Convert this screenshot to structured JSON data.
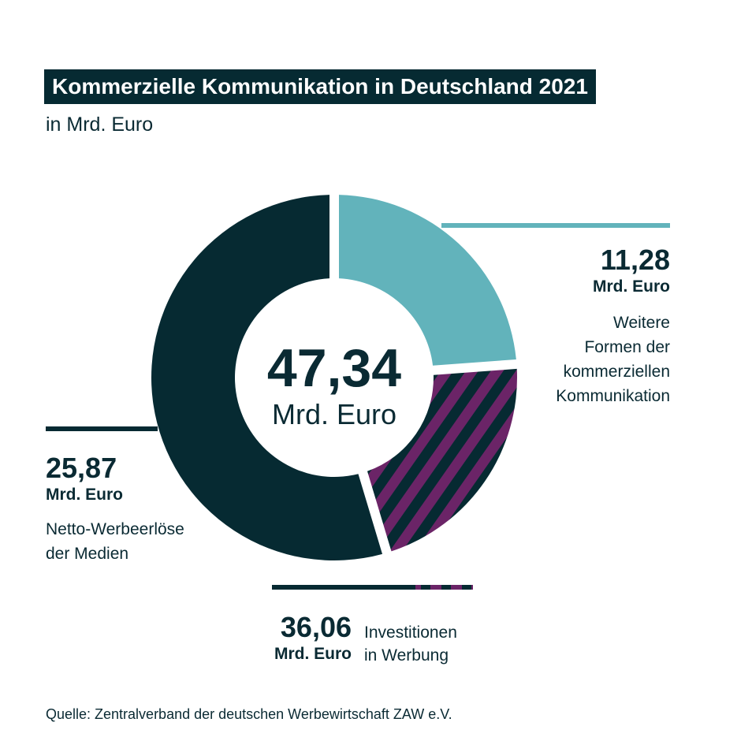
{
  "title": "Kommerzielle Kommunikation in Deutschland 2021",
  "subtitle": "in Mrd. Euro",
  "source": "Quelle: Zentralverband der deutschen Werbewirtschaft ZAW e.V.",
  "center": {
    "value": "47,34",
    "unit": "Mrd. Euro"
  },
  "labels": {
    "weitere": {
      "value": "11,28",
      "unit": "Mrd. Euro",
      "text": [
        "Weitere",
        "Formen der",
        "kommerziellen",
        "Kommunikation"
      ]
    },
    "netto": {
      "value": "25,87",
      "unit": "Mrd. Euro",
      "text": [
        "Netto-Werbeerlöse",
        "der Medien"
      ]
    },
    "invest": {
      "value": "36,06",
      "unit": "Mrd. Euro",
      "text": [
        "Investitionen",
        "in Werbung"
      ]
    }
  },
  "colors": {
    "dark": "#062a32",
    "teal": "#62b3bb",
    "purple": "#6b2467"
  },
  "chart_data": {
    "type": "pie",
    "title": "Kommerzielle Kommunikation in Deutschland 2021",
    "subtitle": "in Mrd. Euro",
    "total": 47.34,
    "unit": "Mrd. Euro",
    "slices": [
      {
        "label": "Weitere Formen der kommerziellen Kommunikation",
        "value": 11.28,
        "color": "#62b3bb",
        "pattern": "solid"
      },
      {
        "label": "",
        "value": 10.19,
        "color": "#6b2467",
        "pattern": "striped"
      },
      {
        "label": "Netto-Werbeerlöse der Medien",
        "value": 25.87,
        "color": "#062a32",
        "pattern": "solid"
      }
    ],
    "groups": [
      {
        "label": "Investitionen in Werbung",
        "value": 36.06,
        "includes": [
          "striped slice",
          "Netto-Werbeerlöse der Medien"
        ]
      }
    ]
  }
}
